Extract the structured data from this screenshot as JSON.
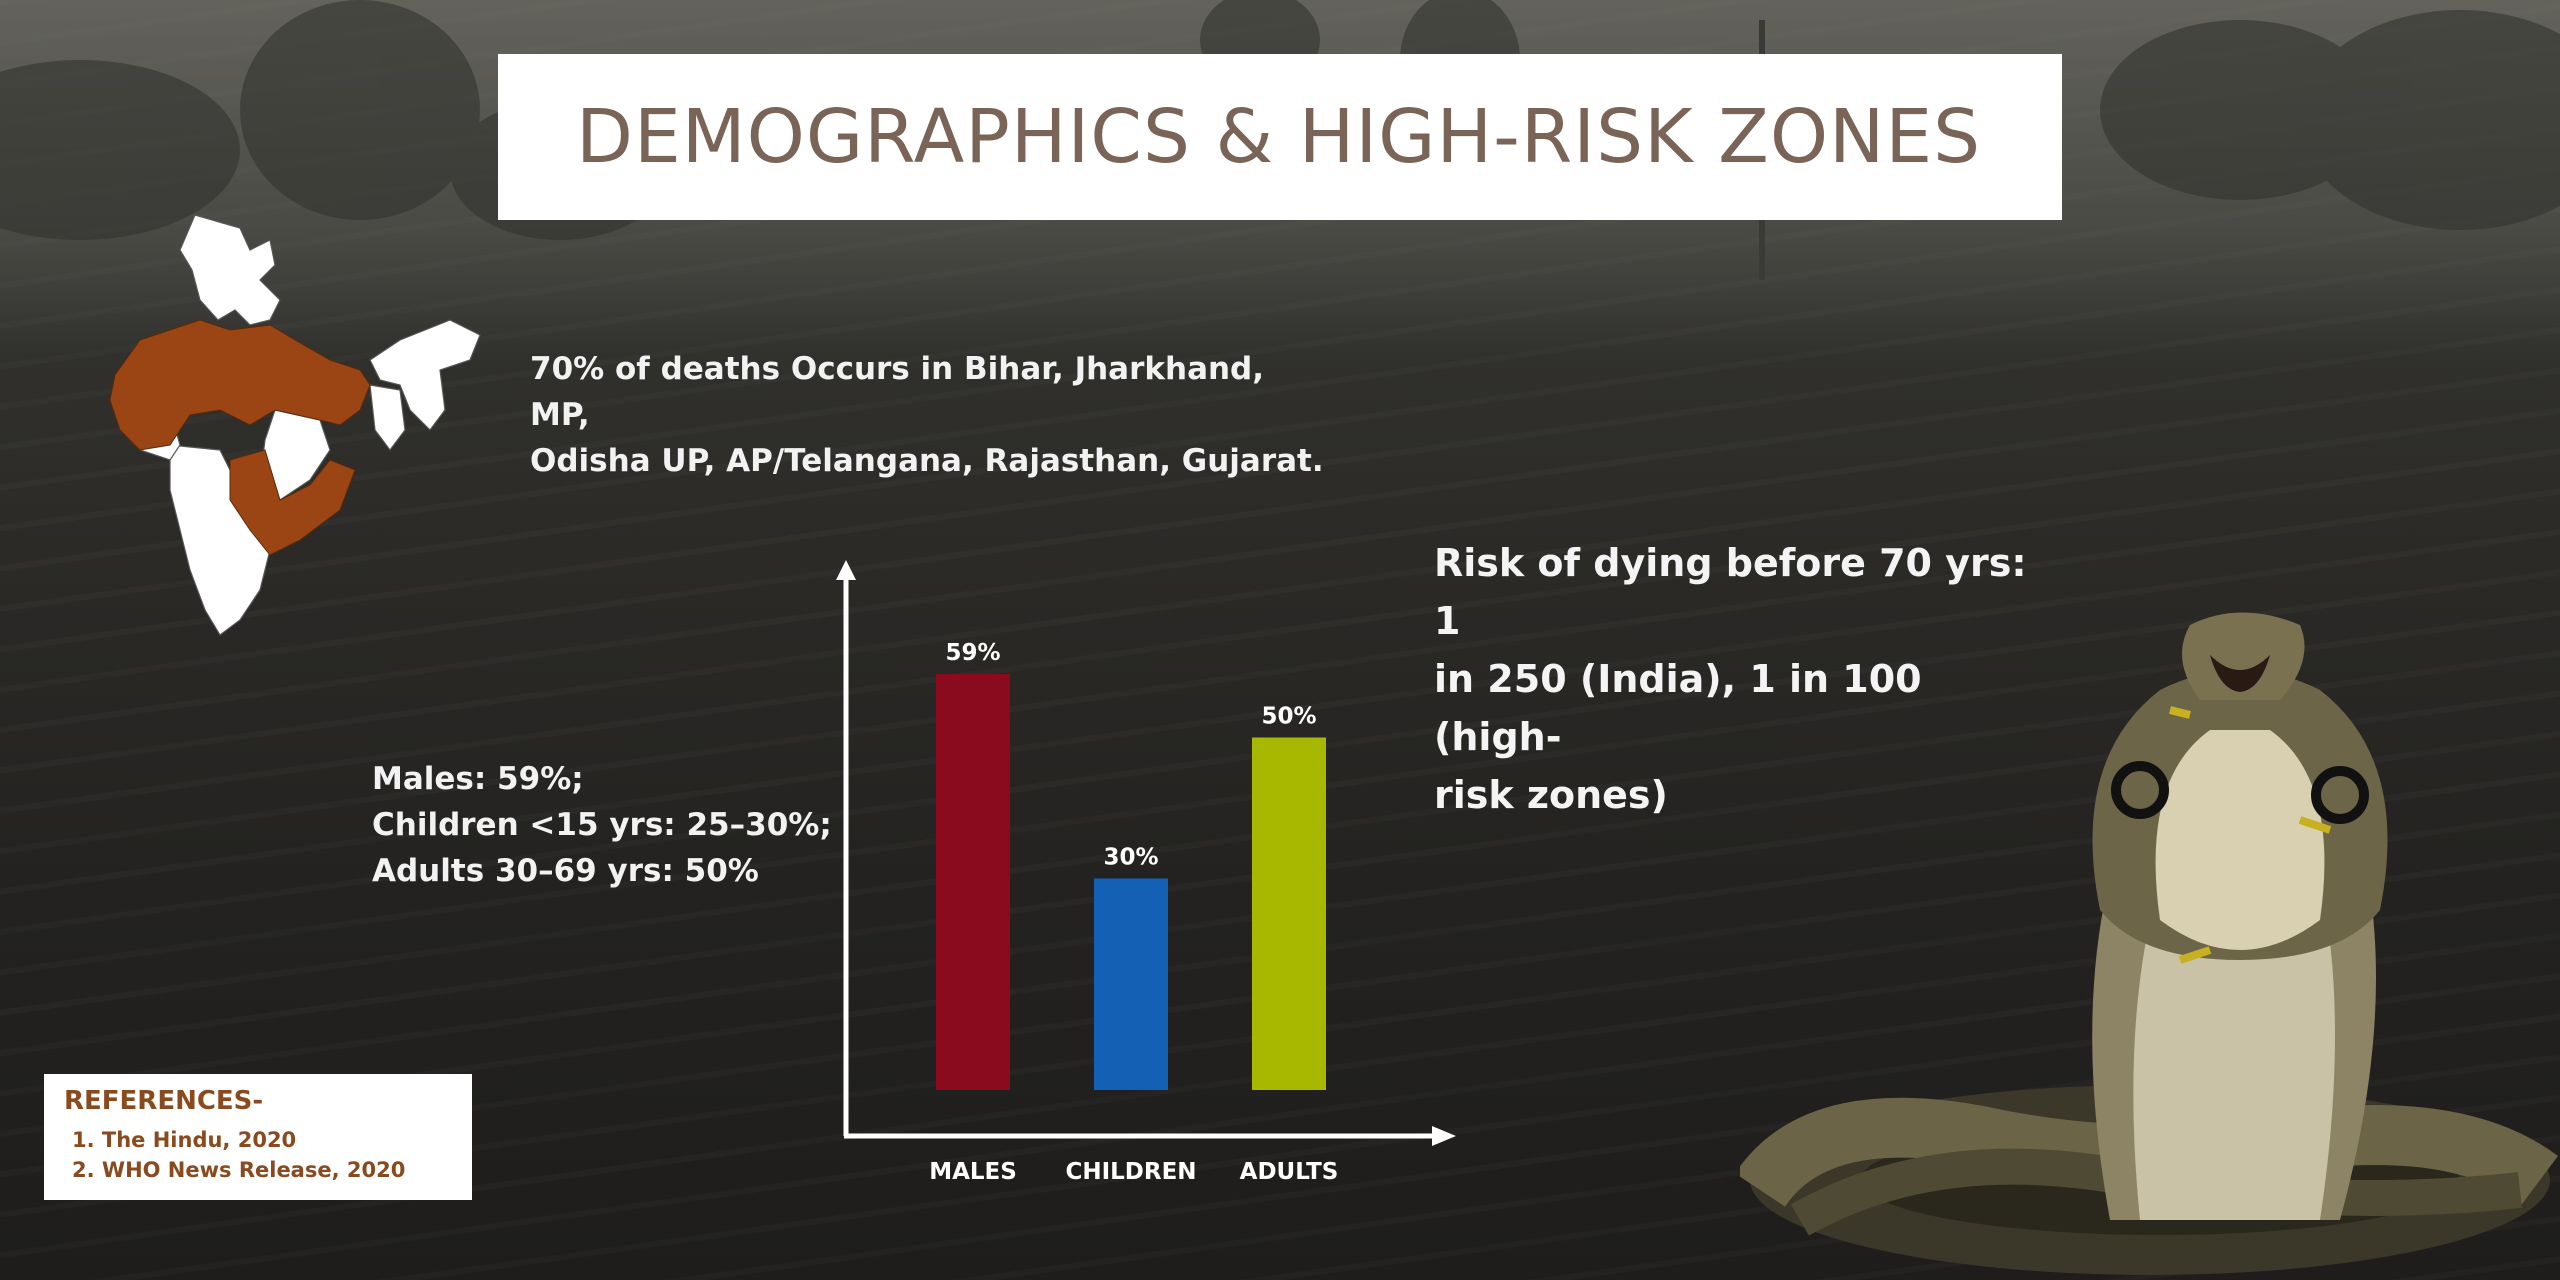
{
  "title": "DEMOGRAPHICS & HIGH-RISK ZONES",
  "zones_text": {
    "line1": "70% of deaths Occurs in Bihar, Jharkhand, MP,",
    "line2": "Odisha UP, AP/Telangana, Rajasthan, Gujarat."
  },
  "risk_text": {
    "line1": "Risk of dying before 70 yrs: 1",
    "line2": "in 250 (India), 1 in 100 (high-",
    "line3": "risk zones)"
  },
  "demographics": {
    "line1": "Males: 59%;",
    "line2": "Children <15 yrs: 25–30%;",
    "line3": "Adults 30–69 yrs: 50%"
  },
  "references": {
    "heading": "REFERENCES-",
    "items": [
      "1. The Hindu, 2020",
      "2. WHO News Release, 2020"
    ]
  },
  "colors": {
    "title_text": "#7a6457",
    "map_highlight": "#9c4514",
    "map_base": "#ffffff",
    "reference_text": "#8a4a1e"
  },
  "chart_data": {
    "type": "bar",
    "categories": [
      "MALES",
      "CHILDREN",
      "ADULTS"
    ],
    "values": [
      59,
      30,
      50
    ],
    "data_labels": [
      "59%",
      "30%",
      "50%"
    ],
    "colors": [
      "#8b0b1e",
      "#1360b4",
      "#a8b800"
    ],
    "ylim": [
      0,
      70
    ],
    "grid": false,
    "title": "",
    "xlabel": "",
    "ylabel": ""
  }
}
